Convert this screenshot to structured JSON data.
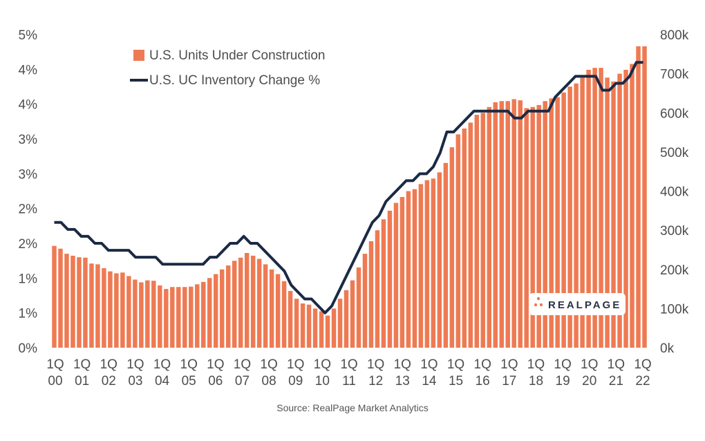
{
  "colors": {
    "bar": "#EE7A53",
    "line": "#1B2A44",
    "text": "#4d4d4d",
    "logo_dots": "#EE7A53",
    "logo_text": "#2a3346"
  },
  "source": "Source: RealPage Market Analytics",
  "logo": {
    "text": "REALPAGE"
  },
  "chart_data": {
    "type": "bar",
    "secondary_type": "line",
    "title": "",
    "legend": {
      "placement": "top-left",
      "bar_label": "U.S. Units Under Construction",
      "line_label": "U.S. UC Inventory Change %"
    },
    "left_axis": {
      "ticks": [
        "5%",
        "4%",
        "4%",
        "3%",
        "3%",
        "2%",
        "2%",
        "1%",
        "1%",
        "0%"
      ],
      "range": [
        0,
        4.5
      ]
    },
    "right_axis": {
      "ticks": [
        "800k",
        "700k",
        "600k",
        "500k",
        "400k",
        "300k",
        "200k",
        "100k",
        "0k"
      ],
      "range": [
        0,
        800000
      ]
    },
    "x_ticks": [
      {
        "q": "1Q",
        "y": "00"
      },
      {
        "q": "1Q",
        "y": "01"
      },
      {
        "q": "1Q",
        "y": "02"
      },
      {
        "q": "1Q",
        "y": "03"
      },
      {
        "q": "1Q",
        "y": "04"
      },
      {
        "q": "1Q",
        "y": "05"
      },
      {
        "q": "1Q",
        "y": "06"
      },
      {
        "q": "1Q",
        "y": "07"
      },
      {
        "q": "1Q",
        "y": "08"
      },
      {
        "q": "1Q",
        "y": "09"
      },
      {
        "q": "1Q",
        "y": "10"
      },
      {
        "q": "1Q",
        "y": "11"
      },
      {
        "q": "1Q",
        "y": "12"
      },
      {
        "q": "1Q",
        "y": "13"
      },
      {
        "q": "1Q",
        "y": "14"
      },
      {
        "q": "1Q",
        "y": "15"
      },
      {
        "q": "1Q",
        "y": "16"
      },
      {
        "q": "1Q",
        "y": "17"
      },
      {
        "q": "1Q",
        "y": "18"
      },
      {
        "q": "1Q",
        "y": "19"
      },
      {
        "q": "1Q",
        "y": "20"
      },
      {
        "q": "1Q",
        "y": "21"
      },
      {
        "q": "1Q",
        "y": "22"
      }
    ],
    "series": [
      {
        "name": "U.S. Units Under Construction",
        "type": "bar",
        "axis": "right",
        "values": [
          260000,
          253000,
          240000,
          235000,
          231000,
          230000,
          215000,
          213000,
          203000,
          195000,
          190000,
          192000,
          183000,
          174000,
          167000,
          172000,
          171000,
          159000,
          150000,
          155000,
          155000,
          155000,
          156000,
          162000,
          168000,
          178000,
          188000,
          200000,
          210000,
          222000,
          230000,
          242000,
          235000,
          227000,
          213000,
          200000,
          188000,
          170000,
          145000,
          125000,
          113000,
          110000,
          100000,
          93000,
          82000,
          100000,
          125000,
          147000,
          172000,
          205000,
          240000,
          272000,
          300000,
          328000,
          350000,
          370000,
          385000,
          400000,
          405000,
          418000,
          428000,
          432000,
          448000,
          472000,
          512000,
          545000,
          560000,
          575000,
          595000,
          600000,
          615000,
          627000,
          630000,
          630000,
          635000,
          632000,
          612000,
          615000,
          620000,
          630000,
          637000,
          640000,
          652000,
          667000,
          675000,
          690000,
          710000,
          715000,
          715000,
          690000,
          680000,
          700000,
          710000,
          725000,
          770000,
          770000
        ]
      },
      {
        "name": "U.S. UC Inventory Change %",
        "type": "line",
        "axis": "left",
        "values": [
          1.8,
          1.8,
          1.7,
          1.7,
          1.6,
          1.6,
          1.5,
          1.5,
          1.4,
          1.4,
          1.4,
          1.4,
          1.3,
          1.3,
          1.3,
          1.3,
          1.2,
          1.2,
          1.2,
          1.2,
          1.2,
          1.2,
          1.2,
          1.3,
          1.3,
          1.4,
          1.5,
          1.5,
          1.6,
          1.5,
          1.5,
          1.4,
          1.3,
          1.2,
          1.1,
          0.9,
          0.8,
          0.7,
          0.7,
          0.6,
          0.5,
          0.6,
          0.8,
          1.0,
          1.2,
          1.4,
          1.6,
          1.8,
          1.9,
          2.1,
          2.2,
          2.3,
          2.4,
          2.4,
          2.5,
          2.5,
          2.6,
          2.8,
          3.1,
          3.1,
          3.2,
          3.3,
          3.4,
          3.4,
          3.4,
          3.4,
          3.4,
          3.4,
          3.3,
          3.3,
          3.4,
          3.4,
          3.4,
          3.4,
          3.6,
          3.7,
          3.8,
          3.9,
          3.9,
          3.9,
          3.9,
          3.7,
          3.7,
          3.8,
          3.8,
          3.9,
          4.1,
          4.1
        ]
      }
    ]
  }
}
